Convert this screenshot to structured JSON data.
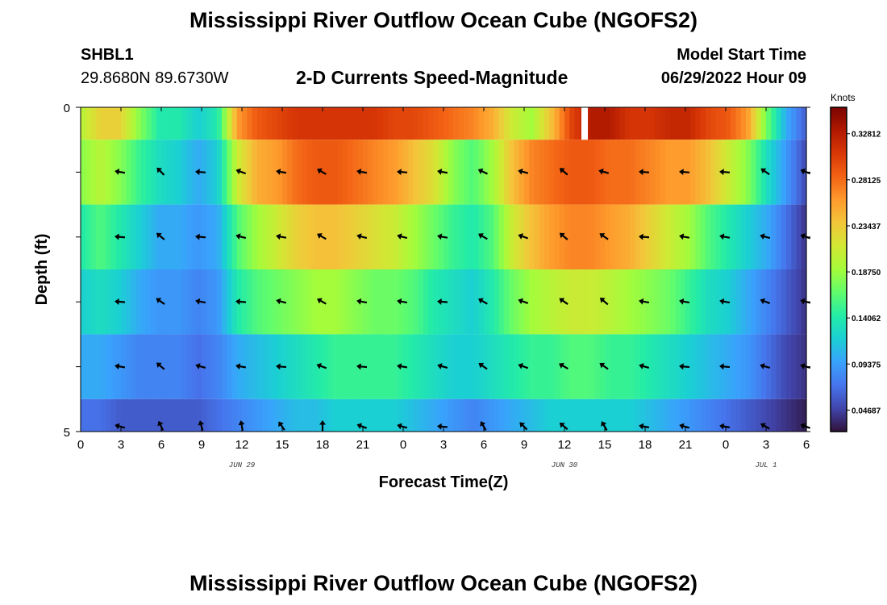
{
  "header": {
    "title": "Mississippi River Outflow Ocean Cube (NGOFS2)",
    "station_id": "SHBL1",
    "coordinates": "29.8680N  89.6730W",
    "subtitle": "2-D Currents Speed-Magnitude",
    "model_start_label": "Model Start Time",
    "model_start_value": "06/29/2022 Hour 09"
  },
  "footer": {
    "title": "Mississippi River Outflow Ocean Cube (NGOFS2)"
  },
  "chart_data": {
    "type": "heatmap",
    "xlabel": "Forecast Time(Z)",
    "ylabel": "Depth (ft)",
    "x_range": [
      0,
      54
    ],
    "y_range": [
      0,
      5
    ],
    "x_tick_labels": [
      "0",
      "3",
      "6",
      "9",
      "12",
      "15",
      "18",
      "21",
      "0",
      "3",
      "6",
      "9",
      "12",
      "15",
      "18",
      "21",
      "0",
      "3",
      "6"
    ],
    "y_tick_labels": [
      "0",
      "5"
    ],
    "date_labels": [
      {
        "label": "JUN 29",
        "hour": 12
      },
      {
        "label": "JUN 30",
        "hour": 36
      },
      {
        "label": "JUL 1",
        "hour": 51
      }
    ],
    "colorbar": {
      "unit": "Knots",
      "tick_labels": [
        "0.32812",
        "0.28125",
        "0.23437",
        "0.18750",
        "0.14062",
        "0.09375",
        "0.04687"
      ],
      "tick_values": [
        0.32812,
        0.28125,
        0.23437,
        0.1875,
        0.14062,
        0.09375,
        0.04687
      ],
      "range": [
        0.025,
        0.355
      ],
      "colors": [
        "#30123b",
        "#4145ab",
        "#4675ed",
        "#39a2fc",
        "#1bcfd4",
        "#24eca6",
        "#61fc6c",
        "#a4fc3b",
        "#d1e834",
        "#f3c63a",
        "#fe9b2d",
        "#f36315",
        "#d93806",
        "#b11901",
        "#7a0402"
      ]
    },
    "layers": [
      {
        "name": "layer-1",
        "depth_range": [
          0,
          0.5
        ],
        "speed": [
          0.2,
          0.23,
          0.23,
          0.18,
          0.14,
          0.14,
          0.12,
          0.14,
          0.26,
          0.29,
          0.3,
          0.31,
          0.31,
          0.31,
          0.31,
          0.31,
          0.3,
          0.3,
          0.29,
          0.28,
          0.27,
          0.25,
          0.21,
          0.19,
          0.24,
          0.3,
          0.33,
          0.33,
          0.31,
          0.31,
          0.32,
          0.32,
          0.3,
          0.29,
          0.26,
          0.17,
          0.1,
          0.06
        ]
      },
      {
        "name": "layer-2",
        "depth_range": [
          0.5,
          1.5
        ],
        "speed": [
          0.18,
          0.2,
          0.18,
          0.15,
          0.13,
          0.12,
          0.1,
          0.12,
          0.21,
          0.25,
          0.26,
          0.28,
          0.29,
          0.29,
          0.28,
          0.27,
          0.26,
          0.24,
          0.22,
          0.18,
          0.16,
          0.19,
          0.24,
          0.27,
          0.28,
          0.29,
          0.29,
          0.28,
          0.28,
          0.27,
          0.26,
          0.26,
          0.24,
          0.21,
          0.18,
          0.13,
          0.09,
          0.05
        ]
      },
      {
        "name": "layer-3",
        "depth_range": [
          1.5,
          2.5
        ],
        "speed": [
          0.14,
          0.16,
          0.14,
          0.12,
          0.1,
          0.1,
          0.09,
          0.1,
          0.16,
          0.19,
          0.21,
          0.23,
          0.24,
          0.24,
          0.23,
          0.22,
          0.21,
          0.19,
          0.17,
          0.15,
          0.14,
          0.16,
          0.21,
          0.24,
          0.26,
          0.27,
          0.27,
          0.26,
          0.25,
          0.23,
          0.21,
          0.19,
          0.16,
          0.14,
          0.12,
          0.1,
          0.07,
          0.04
        ]
      },
      {
        "name": "layer-4",
        "depth_range": [
          2.5,
          3.5
        ],
        "speed": [
          0.12,
          0.13,
          0.12,
          0.1,
          0.09,
          0.09,
          0.08,
          0.09,
          0.14,
          0.16,
          0.17,
          0.18,
          0.19,
          0.19,
          0.18,
          0.17,
          0.17,
          0.16,
          0.14,
          0.13,
          0.12,
          0.14,
          0.17,
          0.19,
          0.2,
          0.21,
          0.21,
          0.2,
          0.19,
          0.18,
          0.17,
          0.15,
          0.13,
          0.12,
          0.1,
          0.08,
          0.06,
          0.04
        ]
      },
      {
        "name": "layer-5",
        "depth_range": [
          3.5,
          4.5
        ],
        "speed": [
          0.1,
          0.1,
          0.09,
          0.08,
          0.08,
          0.08,
          0.07,
          0.08,
          0.1,
          0.11,
          0.12,
          0.13,
          0.14,
          0.15,
          0.15,
          0.15,
          0.15,
          0.14,
          0.13,
          0.12,
          0.12,
          0.13,
          0.14,
          0.15,
          0.15,
          0.16,
          0.16,
          0.15,
          0.15,
          0.14,
          0.13,
          0.12,
          0.11,
          0.1,
          0.09,
          0.07,
          0.05,
          0.04
        ]
      },
      {
        "name": "layer-6",
        "depth_range": [
          4.5,
          5
        ],
        "speed": [
          0.07,
          0.07,
          0.06,
          0.06,
          0.06,
          0.06,
          0.06,
          0.07,
          0.08,
          0.09,
          0.1,
          0.11,
          0.11,
          0.12,
          0.12,
          0.12,
          0.12,
          0.11,
          0.1,
          0.09,
          0.08,
          0.09,
          0.1,
          0.11,
          0.12,
          0.12,
          0.12,
          0.12,
          0.12,
          0.11,
          0.1,
          0.09,
          0.08,
          0.07,
          0.06,
          0.05,
          0.04,
          0.03
        ]
      }
    ],
    "missing_data": [
      {
        "hour": 37.5,
        "depth_range": [
          0,
          0.5
        ]
      }
    ],
    "vector_hours": [
      3,
      6,
      9,
      12,
      15,
      18,
      21,
      24,
      27,
      30,
      33,
      36,
      39,
      42,
      45,
      48,
      51,
      54
    ],
    "vector_depths": [
      1,
      2,
      3,
      4,
      5
    ],
    "vector_direction_deg": [
      [
        170,
        135,
        175,
        160,
        170,
        150,
        170,
        175,
        170,
        155,
        165,
        140,
        165,
        175,
        175,
        175,
        145,
        160
      ],
      [
        175,
        140,
        175,
        165,
        170,
        150,
        165,
        165,
        170,
        150,
        160,
        140,
        145,
        175,
        170,
        170,
        165,
        160
      ],
      [
        175,
        145,
        170,
        175,
        165,
        150,
        170,
        170,
        175,
        150,
        160,
        145,
        140,
        170,
        170,
        170,
        160,
        165
      ],
      [
        170,
        140,
        165,
        170,
        175,
        160,
        175,
        170,
        165,
        145,
        160,
        150,
        145,
        165,
        175,
        175,
        165,
        165
      ],
      [
        165,
        115,
        105,
        100,
        125,
        90,
        160,
        165,
        175,
        120,
        135,
        140,
        120,
        170,
        165,
        170,
        150,
        160
      ]
    ]
  }
}
